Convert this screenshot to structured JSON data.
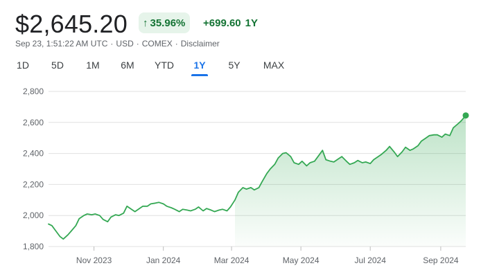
{
  "header": {
    "price": "$2,645.20",
    "change_percent": "35.96%",
    "change_arrow": "↑",
    "change_abs": "+699.60",
    "change_period": "1Y"
  },
  "meta": {
    "timestamp": "Sep 23, 1:51:22 AM UTC",
    "currency": "USD",
    "exchange": "COMEX",
    "disclaimer": "Disclaimer",
    "separator": "·"
  },
  "tabs": [
    {
      "label": "1D",
      "active": false
    },
    {
      "label": "5D",
      "active": false
    },
    {
      "label": "1M",
      "active": false
    },
    {
      "label": "6M",
      "active": false
    },
    {
      "label": "YTD",
      "active": false
    },
    {
      "label": "1Y",
      "active": true
    },
    {
      "label": "5Y",
      "active": false
    },
    {
      "label": "MAX",
      "active": false
    }
  ],
  "colors": {
    "positive": "#137333",
    "line": "#34a853",
    "accent": "#1a73e8",
    "grid": "#e0e0e0"
  },
  "chart_data": {
    "type": "area",
    "ylim": [
      1800,
      2800
    ],
    "yticks": [
      1800,
      2000,
      2200,
      2400,
      2600,
      2800
    ],
    "ytick_labels": [
      "1,800",
      "2,000",
      "2,200",
      "2,400",
      "2,600",
      "2,800"
    ],
    "xlim": [
      "2023-09-22",
      "2024-09-23"
    ],
    "xticks": [
      "2023-11-01",
      "2024-01-01",
      "2024-03-01",
      "2024-05-01",
      "2024-07-01",
      "2024-09-01"
    ],
    "xtick_labels": [
      "Nov 2023",
      "Jan 2024",
      "Mar 2024",
      "May 2024",
      "Jul 2024",
      "Sep 2024"
    ],
    "grid": true,
    "series": [
      {
        "x": [
          "2023-09-22",
          "2023-09-25",
          "2023-09-28",
          "2023-10-02",
          "2023-10-05",
          "2023-10-09",
          "2023-10-12",
          "2023-10-16",
          "2023-10-19",
          "2023-10-23",
          "2023-10-26",
          "2023-10-30",
          "2023-11-02",
          "2023-11-06",
          "2023-11-09",
          "2023-11-13",
          "2023-11-16",
          "2023-11-20",
          "2023-11-23",
          "2023-11-27",
          "2023-11-30",
          "2023-12-04",
          "2023-12-07",
          "2023-12-11",
          "2023-12-14",
          "2023-12-18",
          "2023-12-21",
          "2023-12-25",
          "2023-12-28",
          "2024-01-01",
          "2024-01-04",
          "2024-01-08",
          "2024-01-11",
          "2024-01-15",
          "2024-01-18",
          "2024-01-22",
          "2024-01-25",
          "2024-01-29",
          "2024-02-01",
          "2024-02-05",
          "2024-02-08",
          "2024-02-12",
          "2024-02-15",
          "2024-02-19",
          "2024-02-22",
          "2024-02-26",
          "2024-02-29",
          "2024-03-04",
          "2024-03-07",
          "2024-03-11",
          "2024-03-14",
          "2024-03-18",
          "2024-03-21",
          "2024-03-25",
          "2024-03-28",
          "2024-04-01",
          "2024-04-04",
          "2024-04-08",
          "2024-04-11",
          "2024-04-15",
          "2024-04-18",
          "2024-04-22",
          "2024-04-25",
          "2024-04-29",
          "2024-05-02",
          "2024-05-06",
          "2024-05-09",
          "2024-05-13",
          "2024-05-16",
          "2024-05-20",
          "2024-05-23",
          "2024-05-27",
          "2024-05-30",
          "2024-06-03",
          "2024-06-06",
          "2024-06-10",
          "2024-06-13",
          "2024-06-17",
          "2024-06-20",
          "2024-06-24",
          "2024-06-27",
          "2024-07-01",
          "2024-07-04",
          "2024-07-08",
          "2024-07-11",
          "2024-07-15",
          "2024-07-18",
          "2024-07-22",
          "2024-07-25",
          "2024-07-29",
          "2024-08-01",
          "2024-08-05",
          "2024-08-08",
          "2024-08-12",
          "2024-08-15",
          "2024-08-19",
          "2024-08-22",
          "2024-08-26",
          "2024-08-29",
          "2024-09-02",
          "2024-09-05",
          "2024-09-09",
          "2024-09-12",
          "2024-09-16",
          "2024-09-19",
          "2024-09-23"
        ],
        "values": [
          1945,
          1935,
          1905,
          1865,
          1848,
          1875,
          1900,
          1935,
          1980,
          2000,
          2010,
          2005,
          2010,
          2000,
          1975,
          1960,
          1990,
          2005,
          2000,
          2015,
          2060,
          2040,
          2025,
          2045,
          2060,
          2060,
          2075,
          2080,
          2085,
          2075,
          2060,
          2050,
          2040,
          2025,
          2040,
          2035,
          2030,
          2040,
          2055,
          2030,
          2045,
          2035,
          2025,
          2035,
          2040,
          2030,
          2055,
          2100,
          2150,
          2180,
          2170,
          2180,
          2165,
          2180,
          2220,
          2270,
          2300,
          2330,
          2370,
          2400,
          2405,
          2380,
          2340,
          2330,
          2350,
          2320,
          2340,
          2350,
          2380,
          2420,
          2360,
          2350,
          2345,
          2365,
          2380,
          2350,
          2330,
          2340,
          2355,
          2340,
          2345,
          2335,
          2360,
          2380,
          2395,
          2420,
          2445,
          2410,
          2380,
          2410,
          2440,
          2420,
          2430,
          2450,
          2480,
          2500,
          2515,
          2520,
          2520,
          2505,
          2525,
          2515,
          2565,
          2590,
          2610,
          2645
        ]
      }
    ]
  }
}
